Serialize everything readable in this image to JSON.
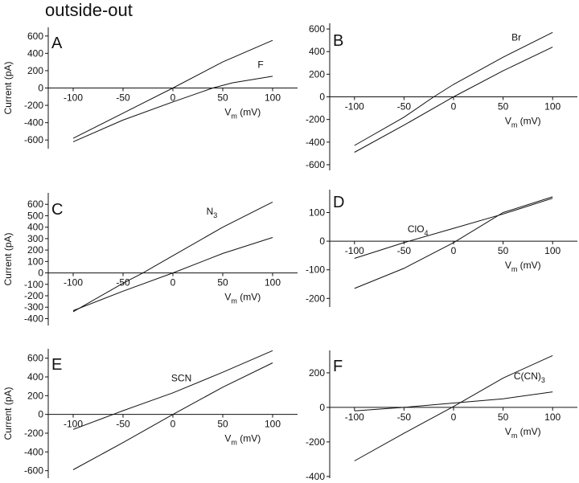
{
  "figure": {
    "title": "outside-out"
  },
  "chart_data": [
    {
      "panel": "A",
      "type": "line",
      "ylabel": "Current (pA)",
      "xlabel": "Vm (mV)",
      "xlim": [
        -125,
        125
      ],
      "ylim": [
        -700,
        700
      ],
      "xticks": [
        -100,
        -50,
        0,
        50,
        100
      ],
      "yticks": [
        -600,
        -400,
        -200,
        0,
        200,
        400,
        600
      ],
      "series": [
        {
          "name": "",
          "x": [
            -100,
            -50,
            0,
            50,
            100
          ],
          "y": [
            -580,
            -290,
            0,
            300,
            550
          ]
        },
        {
          "name": "F",
          "x": [
            -100,
            -50,
            0,
            40,
            60,
            100
          ],
          "y": [
            -620,
            -370,
            -160,
            0,
            60,
            135
          ]
        }
      ]
    },
    {
      "panel": "B",
      "type": "line",
      "ylabel": "",
      "xlabel": "Vm (mV)",
      "xlim": [
        -125,
        125
      ],
      "ylim": [
        -650,
        650
      ],
      "xticks": [
        -100,
        -50,
        0,
        50,
        100
      ],
      "yticks": [
        -600,
        -400,
        -200,
        0,
        200,
        400,
        600
      ],
      "series": [
        {
          "name": "Br",
          "x": [
            -100,
            -50,
            -20,
            0,
            50,
            100
          ],
          "y": [
            -430,
            -180,
            0,
            110,
            350,
            570
          ]
        },
        {
          "name": "",
          "x": [
            -100,
            -50,
            0,
            50,
            100
          ],
          "y": [
            -490,
            -250,
            0,
            230,
            440
          ]
        }
      ]
    },
    {
      "panel": "C",
      "type": "line",
      "ylabel": "Current (pA)",
      "xlabel": "Vm (mV)",
      "xlim": [
        -125,
        125
      ],
      "ylim": [
        -460,
        700
      ],
      "xticks": [
        -100,
        -50,
        0,
        50,
        100
      ],
      "yticks": [
        -400,
        -300,
        -200,
        -100,
        0,
        100,
        200,
        300,
        400,
        500,
        600
      ],
      "series": [
        {
          "name": "N3",
          "x": [
            -100,
            -50,
            -30,
            0,
            50,
            100
          ],
          "y": [
            -340,
            -90,
            0,
            150,
            400,
            620
          ]
        },
        {
          "name": "",
          "x": [
            -100,
            -50,
            0,
            50,
            100
          ],
          "y": [
            -330,
            -160,
            0,
            170,
            310
          ]
        }
      ]
    },
    {
      "panel": "D",
      "type": "line",
      "ylabel": "",
      "xlabel": "Vm (mV)",
      "xlim": [
        -125,
        125
      ],
      "ylim": [
        -230,
        180
      ],
      "xticks": [
        -100,
        -50,
        0,
        50,
        100
      ],
      "yticks": [
        -200,
        -100,
        0,
        100
      ],
      "series": [
        {
          "name": "ClO4",
          "x": [
            -100,
            -50,
            0,
            50,
            100
          ],
          "y": [
            -60,
            -5,
            45,
            95,
            150
          ]
        },
        {
          "name": "",
          "x": [
            -100,
            -50,
            0,
            50,
            100
          ],
          "y": [
            -165,
            -95,
            -5,
            100,
            155
          ]
        }
      ]
    },
    {
      "panel": "E",
      "type": "line",
      "ylabel": "Current (pA)",
      "xlabel": "Vm (mV)",
      "xlim": [
        -125,
        125
      ],
      "ylim": [
        -680,
        700
      ],
      "xticks": [
        -100,
        -50,
        0,
        50,
        100
      ],
      "yticks": [
        -600,
        -400,
        -200,
        0,
        200,
        400,
        600
      ],
      "series": [
        {
          "name": "SCN",
          "x": [
            -100,
            -60,
            -50,
            0,
            50,
            100
          ],
          "y": [
            -160,
            0,
            40,
            230,
            450,
            680
          ]
        },
        {
          "name": "",
          "x": [
            -100,
            -50,
            0,
            50,
            100
          ],
          "y": [
            -590,
            -300,
            0,
            290,
            550
          ]
        }
      ]
    },
    {
      "panel": "F",
      "type": "line",
      "ylabel": "",
      "xlabel": "Vm (mV)",
      "xlim": [
        -125,
        125
      ],
      "ylim": [
        -410,
        330
      ],
      "xticks": [
        -100,
        -50,
        0,
        50,
        100
      ],
      "yticks": [
        -400,
        -200,
        0,
        200
      ],
      "series": [
        {
          "name": "",
          "x": [
            -100,
            -50,
            0,
            50,
            100
          ],
          "y": [
            -310,
            -150,
            5,
            170,
            300
          ]
        },
        {
          "name": "C(CN)3",
          "x": [
            -100,
            -50,
            0,
            50,
            100
          ],
          "y": [
            -20,
            0,
            25,
            50,
            90
          ]
        }
      ]
    }
  ]
}
